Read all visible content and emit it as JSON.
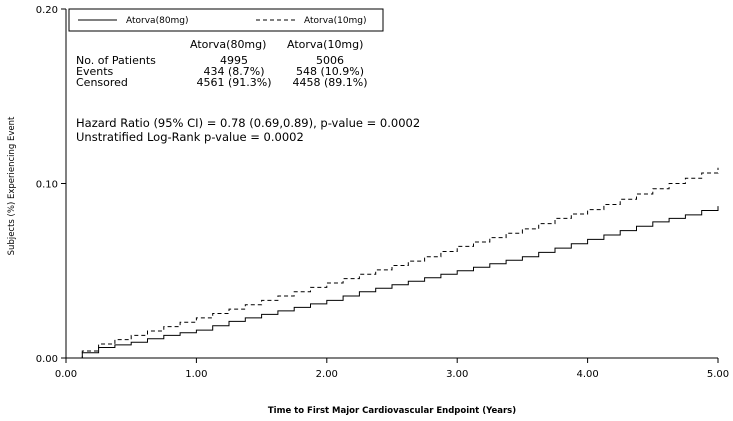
{
  "chart_data": {
    "type": "line",
    "title": "",
    "xlabel": "Time to First Major Cardiovascular Endpoint (Years)",
    "ylabel": "Subjects (%) Experiencing Event",
    "xlim": [
      0,
      5
    ],
    "ylim": [
      0,
      0.2
    ],
    "x_ticks": [
      "0.00",
      "1.00",
      "2.00",
      "3.00",
      "4.00",
      "5.00"
    ],
    "y_ticks": [
      "0.00",
      "0.10",
      "0.20"
    ],
    "grid": false,
    "legend_position": "top",
    "series": [
      {
        "name": "Atorva(80mg)",
        "style": "solid",
        "x": [
          0,
          0.25,
          0.5,
          0.75,
          1.0,
          1.25,
          1.5,
          1.75,
          2.0,
          2.25,
          2.5,
          2.75,
          3.0,
          3.25,
          3.5,
          3.75,
          4.0,
          4.25,
          4.5,
          4.75,
          5.0
        ],
        "y": [
          0,
          0.006,
          0.009,
          0.013,
          0.016,
          0.021,
          0.025,
          0.029,
          0.033,
          0.038,
          0.042,
          0.046,
          0.05,
          0.054,
          0.058,
          0.063,
          0.068,
          0.073,
          0.078,
          0.082,
          0.087
        ]
      },
      {
        "name": "Atorva(10mg)",
        "style": "dashed",
        "x": [
          0,
          0.25,
          0.5,
          0.75,
          1.0,
          1.25,
          1.5,
          1.75,
          2.0,
          2.25,
          2.5,
          2.75,
          3.0,
          3.25,
          3.5,
          3.75,
          4.0,
          4.25,
          4.5,
          4.75,
          5.0
        ],
        "y": [
          0,
          0.008,
          0.013,
          0.018,
          0.023,
          0.028,
          0.033,
          0.038,
          0.043,
          0.048,
          0.053,
          0.058,
          0.064,
          0.069,
          0.074,
          0.08,
          0.085,
          0.091,
          0.097,
          0.103,
          0.109
        ]
      }
    ],
    "stats_table": {
      "columns": [
        "Atorva(80mg)",
        "Atorva(10mg)"
      ],
      "rows": [
        {
          "label": "No. of Patients",
          "values": [
            "4995",
            "5006"
          ]
        },
        {
          "label": "Events",
          "values": [
            "434 (8.7%)",
            "548 (10.9%)"
          ]
        },
        {
          "label": "Censored",
          "values": [
            "4561 (91.3%)",
            "4458 (89.1%)"
          ]
        }
      ]
    },
    "annotations": [
      "Hazard Ratio (95% CI) = 0.78 (0.69,0.89), p-value = 0.0002",
      "Unstratified Log-Rank p-value = 0.0002"
    ]
  }
}
